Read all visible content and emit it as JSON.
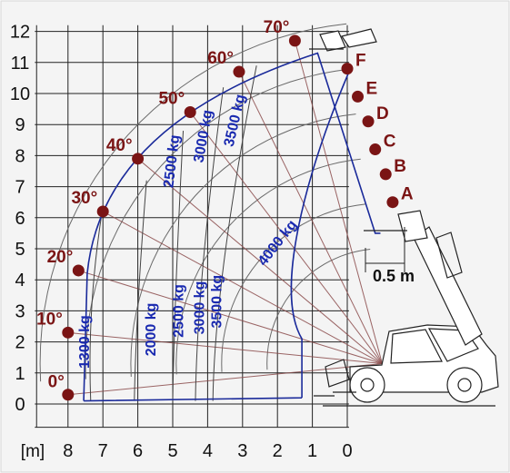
{
  "chart_data": {
    "type": "load-chart",
    "x_unit_label": "[m]",
    "x_ticks": [
      8,
      7,
      6,
      5,
      4,
      3,
      2,
      1,
      0
    ],
    "y_ticks": [
      0,
      1,
      2,
      3,
      4,
      5,
      6,
      7,
      8,
      9,
      10,
      11,
      12
    ],
    "xlim": [
      8.7,
      -0.2
    ],
    "ylim": [
      -0.2,
      12.4
    ],
    "boom_angles": [
      {
        "label": "0°",
        "x": 8.0,
        "y": 0.3
      },
      {
        "label": "10°",
        "x": 8.0,
        "y": 2.3
      },
      {
        "label": "20°",
        "x": 7.7,
        "y": 4.3
      },
      {
        "label": "30°",
        "x": 7.0,
        "y": 6.2
      },
      {
        "label": "40°",
        "x": 6.0,
        "y": 7.9
      },
      {
        "label": "50°",
        "x": 4.5,
        "y": 9.4
      },
      {
        "label": "60°",
        "x": 3.1,
        "y": 10.7
      },
      {
        "label": "70°",
        "x": 1.5,
        "y": 11.7
      }
    ],
    "extension_marks": [
      {
        "label": "A",
        "x": -1.3,
        "y": 6.5
      },
      {
        "label": "B",
        "x": -1.1,
        "y": 7.4
      },
      {
        "label": "C",
        "x": -0.8,
        "y": 8.2
      },
      {
        "label": "D",
        "x": -0.6,
        "y": 9.1
      },
      {
        "label": "E",
        "x": -0.3,
        "y": 9.9
      },
      {
        "label": "F",
        "x": 0.0,
        "y": 10.8
      }
    ],
    "load_zones_horizontal": [
      {
        "label": "1300 kg",
        "x": 7.4,
        "y": 2.0
      },
      {
        "label": "2000 kg",
        "x": 5.5,
        "y": 2.4
      },
      {
        "label": "2500 kg",
        "x": 4.7,
        "y": 3.0
      },
      {
        "label": "3000 kg",
        "x": 4.1,
        "y": 3.1
      },
      {
        "label": "3500 kg",
        "x": 3.6,
        "y": 3.3
      }
    ],
    "load_zones_upper": [
      {
        "label": "2500 kg",
        "x": 4.9,
        "y": 7.8
      },
      {
        "label": "3000 kg",
        "x": 4.0,
        "y": 8.6
      },
      {
        "label": "3500 kg",
        "x": 3.1,
        "y": 9.1
      },
      {
        "label": "4000 kg",
        "x": 1.9,
        "y": 5.1
      }
    ],
    "dimension_label": "0.5 m"
  }
}
